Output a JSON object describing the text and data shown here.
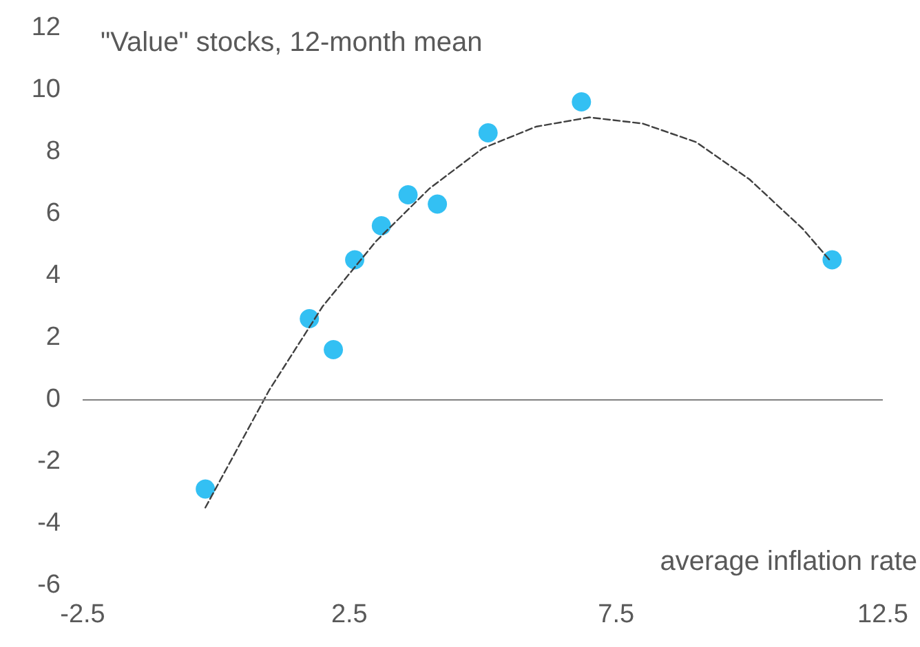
{
  "chart_data": {
    "type": "scatter",
    "ylabel": "\"Value\" stocks, 12-month mean",
    "xlabel": "average inflation rate",
    "xlim": [
      -2.5,
      12.5
    ],
    "xticks": [
      -2.5,
      2.5,
      7.5,
      12.5
    ],
    "ylim": [
      -6,
      12
    ],
    "yticks": [
      -6,
      -4,
      -2,
      0,
      2,
      4,
      6,
      8,
      10,
      12
    ],
    "grid": false,
    "marker": "circle",
    "ref_lines": [
      {
        "axis": "y",
        "value": 0,
        "color": "#808080"
      }
    ],
    "series": [
      {
        "color": "#00b0f0",
        "x": [
          -0.2,
          1.75,
          2.2,
          2.6,
          3.1,
          3.6,
          4.15,
          5.1,
          6.85,
          11.55
        ],
        "values": [
          -2.9,
          2.6,
          1.6,
          4.5,
          5.6,
          6.6,
          6.3,
          8.6,
          9.6,
          4.5
        ]
      },
      {
        "type": "line",
        "color": "#404040",
        "line_style": "dashed",
        "marker": "none",
        "x": [
          -0.2,
          1,
          2,
          3,
          4,
          5,
          6,
          7,
          8,
          9,
          10,
          11,
          11.5
        ],
        "values": [
          -3.5,
          0.3,
          3.0,
          5.1,
          6.8,
          8.1,
          8.8,
          9.1,
          8.9,
          8.3,
          7.1,
          5.5,
          4.5
        ]
      }
    ]
  }
}
